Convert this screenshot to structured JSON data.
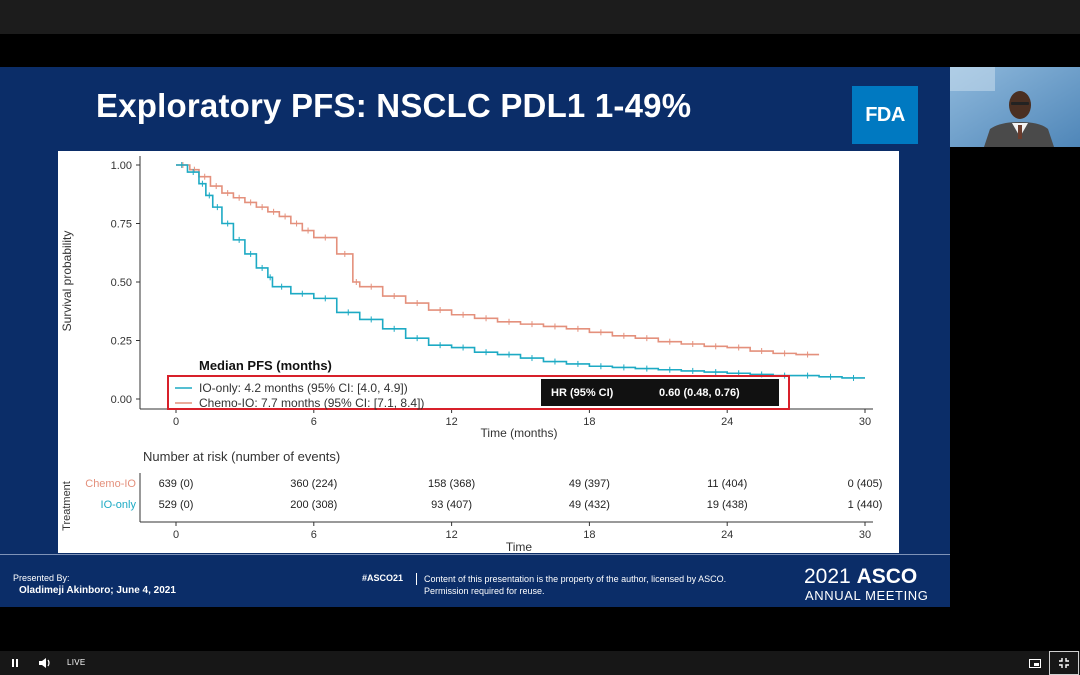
{
  "slide": {
    "title": "Exploratory PFS: NSCLC PDL1 1-49%",
    "logo_text": "FDA",
    "presenter_label": "Presented By:",
    "presenter_name": "Oladimeji Akinboro; June 4, 2021",
    "hashtag": "#ASCO21",
    "copyright_line1": "Content of this presentation is the property of the author, licensed by ASCO.",
    "copyright_line2": "Permission required for reuse.",
    "meeting_year": "2021",
    "meeting_name": "ASCO",
    "meeting_sub": "ANNUAL MEETING"
  },
  "chart_data": {
    "type": "line",
    "title": "",
    "xlabel": "Time (months)",
    "ylabel": "Survival probability",
    "xlim": [
      0,
      30
    ],
    "ylim": [
      0,
      1
    ],
    "x_ticks": [
      0,
      6,
      12,
      18,
      24,
      30
    ],
    "y_ticks": [
      "0.00",
      "0.25",
      "0.50",
      "0.75",
      "1.00"
    ],
    "grid": false,
    "series": [
      {
        "name": "Chemo-IO",
        "color": "#e4907c",
        "x": [
          0,
          0.6,
          1,
          1.5,
          2,
          2.5,
          3,
          3.5,
          4,
          4.5,
          5,
          5.5,
          6,
          7,
          7.7,
          8,
          9,
          10,
          11,
          12,
          13,
          14,
          15,
          16,
          17,
          18,
          19,
          20,
          21,
          22,
          23,
          24,
          25,
          26,
          27,
          28
        ],
        "y": [
          1.0,
          0.98,
          0.95,
          0.91,
          0.88,
          0.86,
          0.84,
          0.82,
          0.8,
          0.78,
          0.75,
          0.72,
          0.69,
          0.62,
          0.5,
          0.48,
          0.44,
          0.41,
          0.38,
          0.36,
          0.345,
          0.33,
          0.32,
          0.31,
          0.3,
          0.285,
          0.27,
          0.26,
          0.245,
          0.235,
          0.225,
          0.22,
          0.205,
          0.195,
          0.19,
          0.19
        ]
      },
      {
        "name": "IO-only",
        "color": "#1daac4",
        "x": [
          0,
          0.5,
          1,
          1.3,
          1.6,
          2,
          2.5,
          3,
          3.5,
          4,
          4.2,
          5,
          6,
          7,
          8,
          9,
          10,
          11,
          12,
          13,
          14,
          15,
          16,
          17,
          18,
          19,
          20,
          21,
          22,
          23,
          24,
          25,
          26,
          27,
          28,
          29,
          30
        ],
        "y": [
          1.0,
          0.97,
          0.92,
          0.87,
          0.82,
          0.75,
          0.68,
          0.62,
          0.56,
          0.52,
          0.48,
          0.45,
          0.43,
          0.37,
          0.34,
          0.3,
          0.26,
          0.23,
          0.22,
          0.2,
          0.19,
          0.175,
          0.16,
          0.15,
          0.14,
          0.135,
          0.13,
          0.125,
          0.12,
          0.115,
          0.11,
          0.105,
          0.1,
          0.1,
          0.095,
          0.09,
          0.09
        ]
      }
    ],
    "legend": {
      "title": "Median PFS (months)",
      "entries": [
        "IO-only: 4.2 months (95% CI: [4.0, 4.9])",
        "Chemo-IO: 7.7 months (95% CI: [7.1, 8.4])"
      ],
      "hr_label": "HR (95% CI)",
      "hr_value": "0.60 (0.48, 0.76)"
    },
    "risk_table": {
      "title": "Number at risk (number of events)",
      "side_label": "Treatment",
      "xlabel": "Time",
      "rows": [
        {
          "name": "Chemo-IO",
          "color": "#e4907c",
          "values": [
            "639 (0)",
            "360 (224)",
            "158 (368)",
            "49 (397)",
            "11 (404)",
            "0 (405)"
          ]
        },
        {
          "name": "IO-only",
          "color": "#1daac4",
          "values": [
            "529 (0)",
            "200 (308)",
            "93 (407)",
            "49 (432)",
            "19 (438)",
            "1 (440)"
          ]
        }
      ]
    }
  },
  "player": {
    "live_label": "LIVE"
  }
}
